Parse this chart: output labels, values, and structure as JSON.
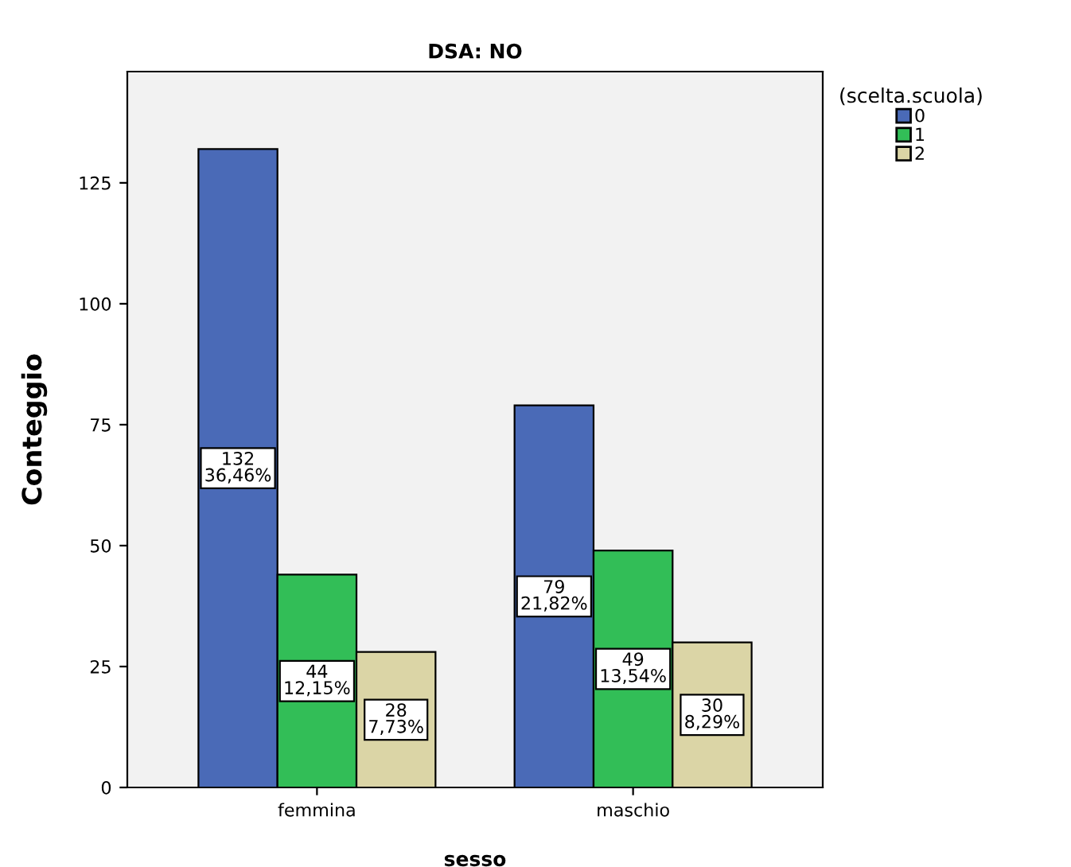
{
  "chart_data": {
    "type": "bar",
    "title": "DSA: NO",
    "xlabel": "sesso",
    "ylabel": "Conteggio",
    "legend_title": "(scelta.scuola)",
    "categories": [
      "femmina",
      "maschio"
    ],
    "series": [
      {
        "name": "0",
        "color": "#4a6ab7",
        "values": [
          132,
          79
        ],
        "value_labels": [
          "132\n36,46%",
          "79\n21,82%"
        ]
      },
      {
        "name": "1",
        "color": "#32be57",
        "values": [
          44,
          49
        ],
        "value_labels": [
          "44\n12,15%",
          "49\n13,54%"
        ]
      },
      {
        "name": "2",
        "color": "#dbd5a6",
        "values": [
          28,
          30
        ],
        "value_labels": [
          "28\n7,73%",
          "30\n8,29%"
        ]
      }
    ],
    "ylim": [
      0,
      148
    ],
    "yticks": [
      0,
      25,
      50,
      75,
      100,
      125
    ],
    "grid": false,
    "legend": "top right"
  }
}
